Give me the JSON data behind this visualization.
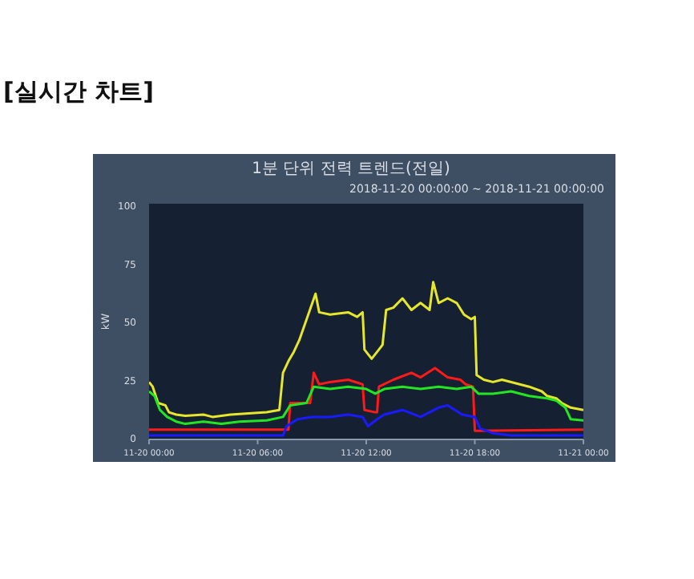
{
  "chart_data": {
    "type": "line",
    "title": "1분 단위 전력 트렌드(전일)",
    "subtitle": "2018-11-20 00:00:00 ~ 2018-11-21 00:00:00",
    "ylabel": "kW",
    "annotations": [
      "[실시간 차트]"
    ],
    "xlim": [
      "2018-11-20T00:00",
      "2018-11-21T00:00"
    ],
    "xticks": [
      {
        "value": "2018-11-20T00:00",
        "label": "11-20 00:00"
      },
      {
        "value": "2018-11-20T06:00",
        "label": "11-20 06:00"
      },
      {
        "value": "2018-11-20T12:00",
        "label": "11-20 12:00"
      },
      {
        "value": "2018-11-20T18:00",
        "label": "11-20 18:00"
      },
      {
        "value": "2018-11-21T00:00",
        "label": "11-21 00:00"
      }
    ],
    "ylim": [
      0,
      100
    ],
    "yticks": [
      0,
      25,
      50,
      75,
      100
    ],
    "grid": false,
    "line_style": "solid",
    "marker": "none",
    "series": [
      {
        "color": "#e6e62a",
        "x": [
          "2018-11-20T00:00",
          "2018-11-20T00:12",
          "2018-11-20T00:30",
          "2018-11-20T00:54",
          "2018-11-20T01:06",
          "2018-11-20T01:30",
          "2018-11-20T02:00",
          "2018-11-20T03:00",
          "2018-11-20T03:30",
          "2018-11-20T04:30",
          "2018-11-20T05:30",
          "2018-11-20T06:30",
          "2018-11-20T07:12",
          "2018-11-20T07:24",
          "2018-11-20T07:42",
          "2018-11-20T08:00",
          "2018-11-20T08:18",
          "2018-11-20T09:12",
          "2018-11-20T09:24",
          "2018-11-20T10:00",
          "2018-11-20T11:00",
          "2018-11-20T11:30",
          "2018-11-20T11:48",
          "2018-11-20T11:54",
          "2018-11-20T12:18",
          "2018-11-20T12:42",
          "2018-11-20T12:54",
          "2018-11-20T13:06",
          "2018-11-20T13:30",
          "2018-11-20T14:00",
          "2018-11-20T14:30",
          "2018-11-20T15:00",
          "2018-11-20T15:30",
          "2018-11-20T15:42",
          "2018-11-20T16:00",
          "2018-11-20T16:30",
          "2018-11-20T17:00",
          "2018-11-20T17:24",
          "2018-11-20T17:48",
          "2018-11-20T18:00",
          "2018-11-20T18:06",
          "2018-11-20T18:30",
          "2018-11-20T19:00",
          "2018-11-20T19:30",
          "2018-11-20T21:00",
          "2018-11-20T21:42",
          "2018-11-20T22:00",
          "2018-11-20T22:30",
          "2018-11-20T22:48",
          "2018-11-20T23:18",
          "2018-11-21T00:00"
        ],
        "values": [
          24,
          22,
          15,
          14,
          11,
          10,
          9.5,
          10,
          9,
          10,
          10.5,
          11,
          12,
          28,
          33,
          37,
          42,
          62,
          54,
          53,
          54,
          52,
          54,
          38,
          34,
          38,
          40,
          55,
          56,
          60,
          55,
          58,
          55,
          67,
          58,
          60,
          58,
          53,
          51,
          52,
          27,
          25,
          24,
          25,
          22,
          20,
          18,
          17,
          15,
          13,
          12
        ]
      },
      {
        "color": "#ff1a1a",
        "x": [
          "2018-11-20T00:00",
          "2018-11-20T07:42",
          "2018-11-20T07:48",
          "2018-11-20T08:54",
          "2018-11-20T09:06",
          "2018-11-20T09:24",
          "2018-11-20T10:00",
          "2018-11-20T11:00",
          "2018-11-20T11:48",
          "2018-11-20T11:54",
          "2018-11-20T12:30",
          "2018-11-20T12:36",
          "2018-11-20T12:42",
          "2018-11-20T13:30",
          "2018-11-20T14:30",
          "2018-11-20T15:00",
          "2018-11-20T15:48",
          "2018-11-20T16:30",
          "2018-11-20T17:12",
          "2018-11-20T17:30",
          "2018-11-20T17:54",
          "2018-11-20T18:00",
          "2018-11-21T00:00"
        ],
        "values": [
          3.5,
          3.5,
          15,
          15,
          28,
          23,
          24,
          25,
          23,
          12,
          11,
          11,
          22,
          25,
          28,
          26,
          30,
          26,
          25,
          23,
          22,
          3,
          3.5
        ]
      },
      {
        "color": "#22e622",
        "x": [
          "2018-11-20T00:00",
          "2018-11-20T00:18",
          "2018-11-20T00:36",
          "2018-11-20T01:00",
          "2018-11-20T01:30",
          "2018-11-20T02:00",
          "2018-11-20T03:00",
          "2018-11-20T04:00",
          "2018-11-20T05:00",
          "2018-11-20T06:30",
          "2018-11-20T07:24",
          "2018-11-20T07:48",
          "2018-11-20T08:42",
          "2018-11-20T09:06",
          "2018-11-20T10:00",
          "2018-11-20T11:00",
          "2018-11-20T12:00",
          "2018-11-20T12:30",
          "2018-11-20T13:00",
          "2018-11-20T14:00",
          "2018-11-20T15:00",
          "2018-11-20T16:00",
          "2018-11-20T17:00",
          "2018-11-20T17:48",
          "2018-11-20T18:12",
          "2018-11-20T19:00",
          "2018-11-20T20:00",
          "2018-11-20T21:00",
          "2018-11-20T22:00",
          "2018-11-20T22:30",
          "2018-11-20T23:00",
          "2018-11-20T23:18",
          "2018-11-21T00:00"
        ],
        "values": [
          20,
          18,
          12,
          9,
          7,
          6,
          7,
          6,
          7,
          7.5,
          9,
          14,
          15,
          22,
          21,
          22,
          21,
          19,
          21,
          22,
          21,
          22,
          21,
          22,
          19,
          19,
          20,
          18,
          17,
          16,
          13,
          8,
          7.5
        ]
      },
      {
        "color": "#1a1aff",
        "x": [
          "2018-11-20T00:00",
          "2018-11-20T07:24",
          "2018-11-20T07:36",
          "2018-11-20T08:12",
          "2018-11-20T09:00",
          "2018-11-20T10:00",
          "2018-11-20T11:00",
          "2018-11-20T11:48",
          "2018-11-20T12:06",
          "2018-11-20T12:36",
          "2018-11-20T13:00",
          "2018-11-20T14:00",
          "2018-11-20T15:00",
          "2018-11-20T16:00",
          "2018-11-20T16:30",
          "2018-11-20T17:18",
          "2018-11-20T18:00",
          "2018-11-20T18:18",
          "2018-11-20T19:00",
          "2018-11-20T20:00",
          "2018-11-21T00:00"
        ],
        "values": [
          1,
          1,
          5,
          8,
          9,
          9,
          10,
          9,
          5,
          8,
          10,
          12,
          9,
          13,
          14,
          10,
          9,
          4,
          2,
          1,
          1
        ]
      }
    ]
  }
}
